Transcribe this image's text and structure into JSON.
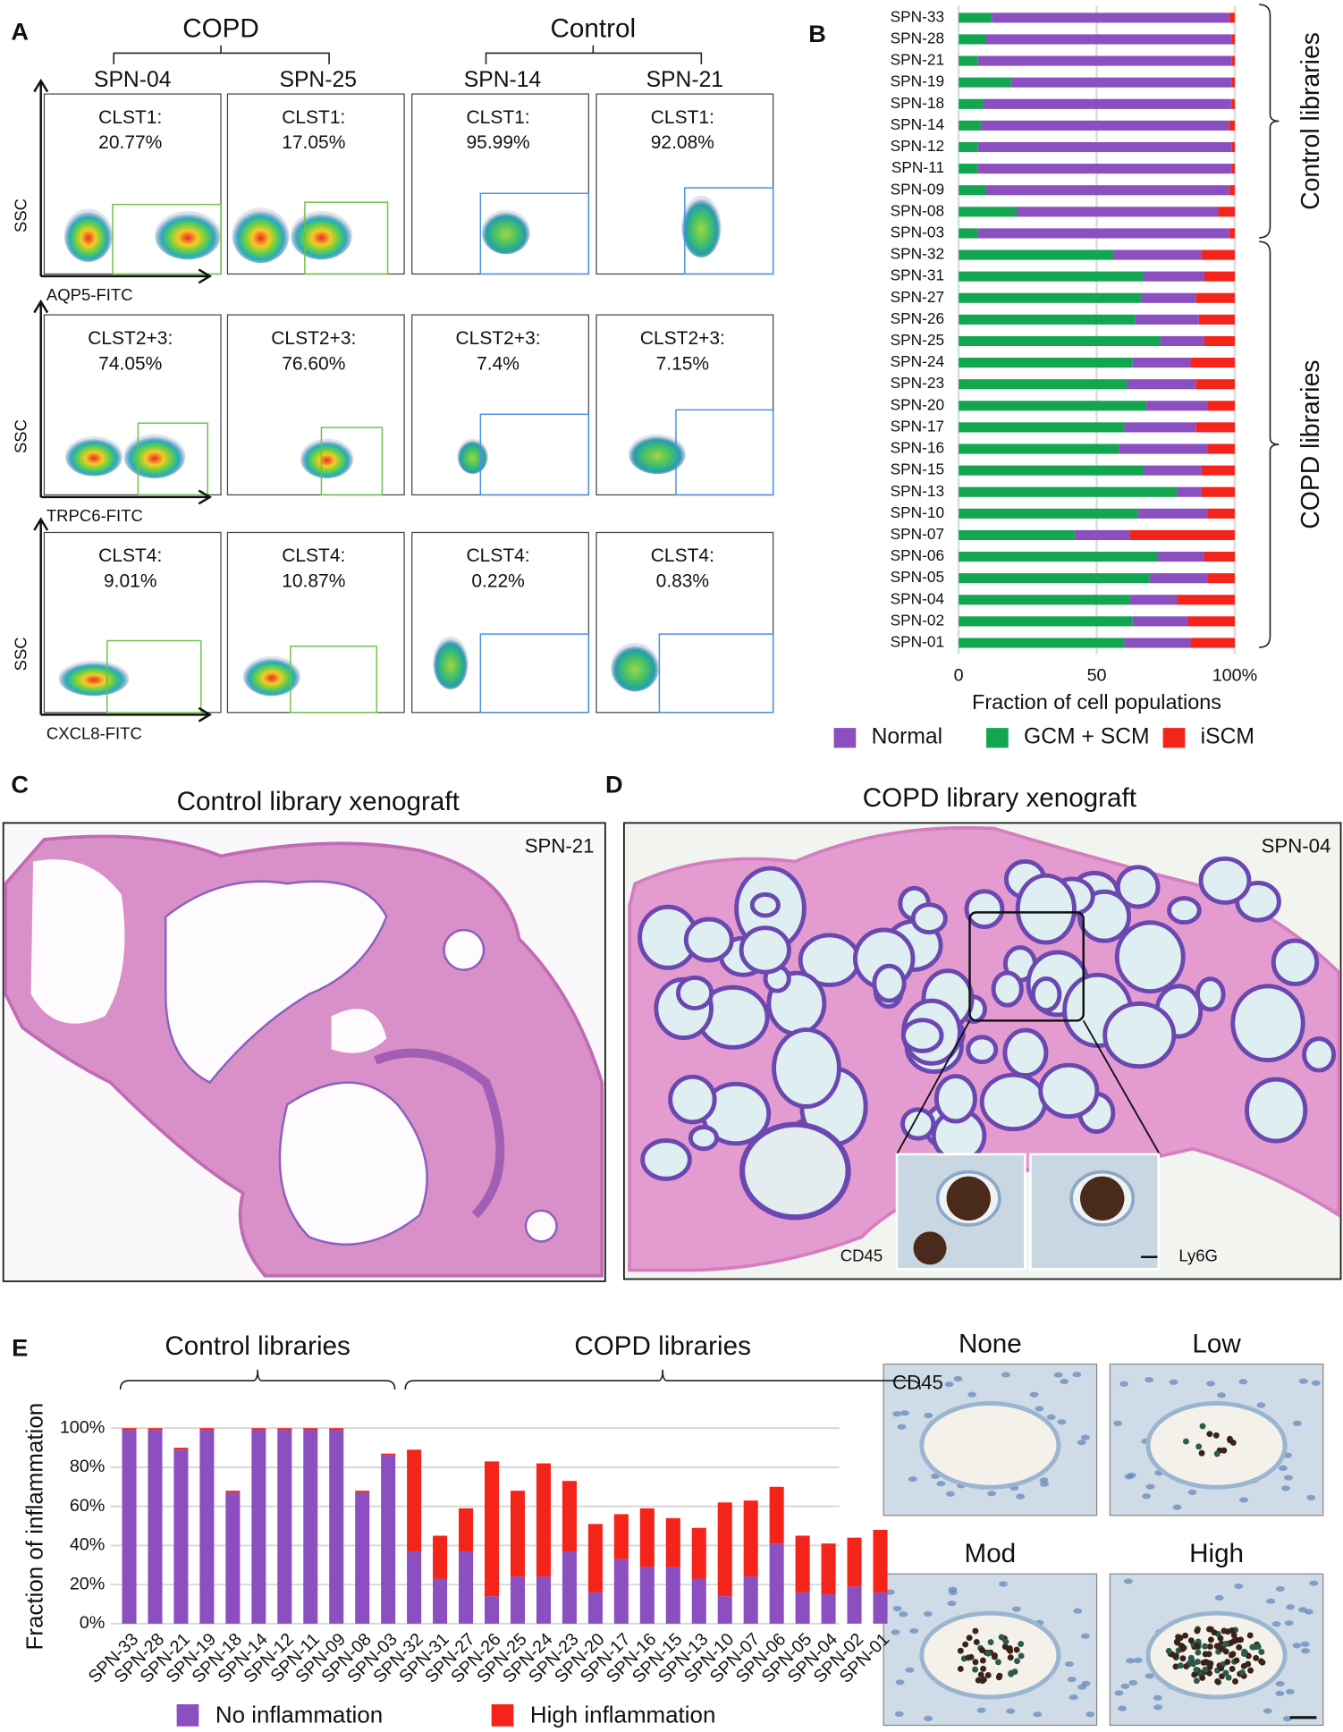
{
  "panel_labels": [
    "A",
    "B",
    "C",
    "D",
    "E"
  ],
  "panel_a": {
    "groups": [
      {
        "label": "COPD",
        "samples": [
          "SPN-04",
          "SPN-25"
        ]
      },
      {
        "label": "Control",
        "samples": [
          "SPN-14",
          "SPN-21"
        ]
      }
    ],
    "y_label": "SSC",
    "rows": [
      {
        "x_label": "AQP5-FITC",
        "gates": [
          [
            "CLST1:",
            "20.77%"
          ],
          [
            "CLST1:",
            "17.05%"
          ],
          [
            "CLST1:",
            "95.99%"
          ],
          [
            "CLST1:",
            "92.08%"
          ]
        ]
      },
      {
        "x_label": "TRPC6-FITC",
        "gates": [
          [
            "CLST2+3:",
            "74.05%"
          ],
          [
            "CLST2+3:",
            "76.60%"
          ],
          [
            "CLST2+3:",
            "7.4%"
          ],
          [
            "CLST2+3:",
            "7.15%"
          ]
        ]
      },
      {
        "x_label": "CXCL8-FITC",
        "gates": [
          [
            "CLST4:",
            "9.01%"
          ],
          [
            "CLST4:",
            "10.87%"
          ],
          [
            "CLST4:",
            "0.22%"
          ],
          [
            "CLST4:",
            "0.83%"
          ]
        ]
      }
    ]
  },
  "chart_data": [
    {
      "type": "bar",
      "orientation": "horizontal",
      "stacked": true,
      "categories": [
        "SPN-33",
        "SPN-28",
        "SPN-21",
        "SPN-19",
        "SPN-18",
        "SPN-14",
        "SPN-12",
        "SPN-11",
        "SPN-09",
        "SPN-08",
        "SPN-03",
        "SPN-32",
        "SPN-31",
        "SPN-27",
        "SPN-26",
        "SPN-25",
        "SPN-24",
        "SPN-23",
        "SPN-20",
        "SPN-17",
        "SPN-16",
        "SPN-15",
        "SPN-13",
        "SPN-10",
        "SPN-07",
        "SPN-06",
        "SPN-05",
        "SPN-04",
        "SPN-02",
        "SPN-01"
      ],
      "series": [
        {
          "name": "GCM + SCM",
          "color": "#13a650",
          "values": [
            12,
            10,
            7,
            19,
            9,
            8,
            7,
            7,
            10,
            21,
            7,
            56,
            67,
            66,
            64,
            73,
            63,
            61,
            68,
            60,
            58,
            67,
            79,
            65,
            42,
            72,
            69,
            62,
            63,
            60
          ]
        },
        {
          "name": "Normal",
          "color": "#8b4fc0",
          "values": [
            86,
            89,
            92,
            80,
            90,
            90,
            92,
            92,
            88,
            73,
            91,
            32,
            22,
            20,
            23,
            16,
            21,
            25,
            22,
            26,
            32,
            21,
            9,
            25,
            20,
            17,
            21,
            17,
            20,
            24
          ]
        },
        {
          "name": "iSCM",
          "color": "#f4241b",
          "values": [
            2,
            1,
            1,
            1,
            1,
            2,
            1,
            1,
            2,
            6,
            2,
            12,
            11,
            14,
            13,
            11,
            16,
            14,
            10,
            14,
            10,
            12,
            12,
            10,
            38,
            11,
            10,
            21,
            17,
            16
          ]
        }
      ],
      "xlim": [
        0,
        100
      ],
      "xticks": [
        0,
        50,
        {
          "value": 100,
          "label": "100%"
        }
      ],
      "xlabel": "Fraction of cell populations",
      "grid": true,
      "bracket_labels": [
        "Control libraries",
        "COPD libraries"
      ]
    },
    {
      "type": "bar",
      "orientation": "vertical",
      "stacked": true,
      "categories": [
        "SPN-33",
        "SPN-28",
        "SPN-21",
        "SPN-19",
        "SPN-18",
        "SPN-14",
        "SPN-12",
        "SPN-11",
        "SPN-09",
        "SPN-08",
        "SPN-03",
        "SPN-32",
        "SPN-31",
        "SPN-27",
        "SPN-26",
        "SPN-25",
        "SPN-24",
        "SPN-23",
        "SPN-20",
        "SPN-17",
        "SPN-16",
        "SPN-15",
        "SPN-13",
        "SPN-10",
        "SPN-07",
        "SPN-06",
        "SPN-05",
        "SPN-04",
        "SPN-02",
        "SPN-01"
      ],
      "series": [
        {
          "name": "No inflammation",
          "color": "#8b4fc0",
          "values": [
            99,
            99,
            89,
            99,
            67,
            99,
            99,
            99,
            99,
            67,
            86,
            37,
            23,
            37,
            14,
            24,
            24,
            37,
            16,
            33,
            29,
            29,
            23,
            14,
            24,
            41,
            16,
            15,
            19,
            16
          ]
        },
        {
          "name": "High inflammation",
          "color": "#f4241b",
          "values": [
            1,
            1,
            1,
            1,
            1,
            1,
            1,
            1,
            1,
            1,
            1,
            52,
            22,
            22,
            69,
            44,
            58,
            36,
            35,
            23,
            30,
            25,
            26,
            48,
            39,
            29,
            29,
            26,
            25,
            32
          ]
        }
      ],
      "ylim": [
        0,
        100
      ],
      "yticks": [
        {
          "value": 0,
          "label": "0%"
        },
        {
          "value": 20,
          "label": "20%"
        },
        {
          "value": 40,
          "label": "40%"
        },
        {
          "value": 60,
          "label": "60%"
        },
        {
          "value": 80,
          "label": "80%"
        },
        {
          "value": 100,
          "label": "100%"
        }
      ],
      "ylabel": "Fraction of inflammation",
      "grid": true,
      "bracket_labels": [
        "Control libraries",
        "COPD libraries"
      ]
    }
  ],
  "panel_c": {
    "title": "Control library xenograft",
    "sample": "SPN-21"
  },
  "panel_d": {
    "title": "COPD library xenograft",
    "sample": "SPN-04",
    "insets": [
      "CD45",
      "Ly6G"
    ]
  },
  "panel_e_images": {
    "levels": [
      "None",
      "Low",
      "Mod",
      "High"
    ],
    "stain": "CD45"
  }
}
